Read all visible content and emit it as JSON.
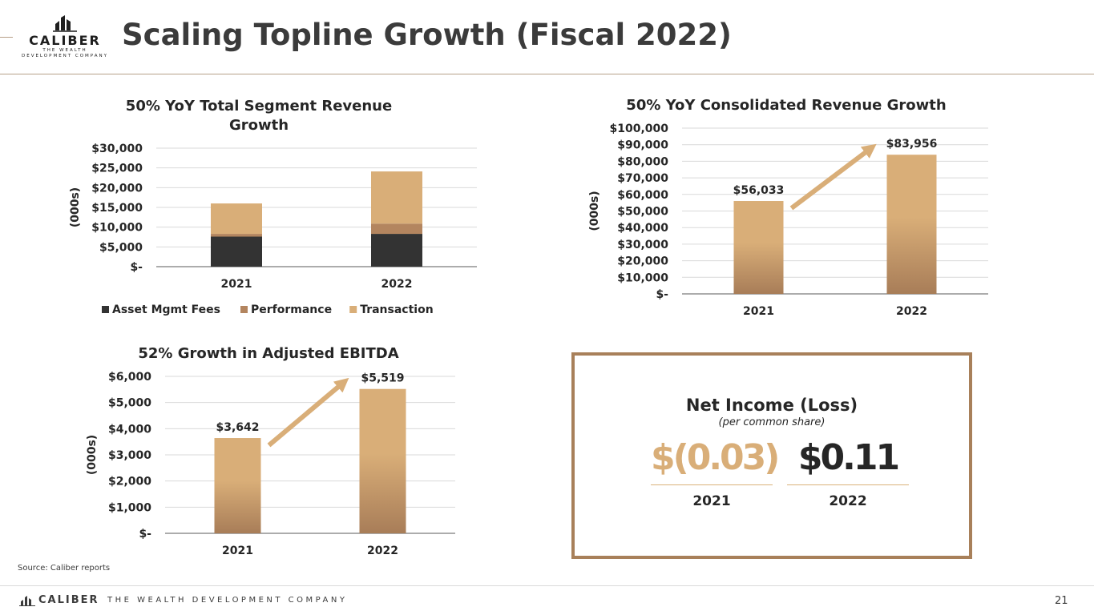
{
  "header": {
    "title": "Scaling Topline Growth (Fiscal 2022)",
    "logo_name": "CALIBER",
    "logo_tagline": "THE WEALTH DEVELOPMENT COMPANY"
  },
  "chart_data": [
    {
      "type": "bar",
      "stacked": true,
      "title": "50% YoY Total Segment Revenue Growth",
      "ylabel": "(000s)",
      "categories": [
        "2021",
        "2022"
      ],
      "series": [
        {
          "name": "Asset Mgmt Fees",
          "values": [
            7600,
            8300
          ],
          "color": "#333333"
        },
        {
          "name": "Performance",
          "values": [
            700,
            2600
          ],
          "color": "#b3855f"
        },
        {
          "name": "Transaction",
          "values": [
            7700,
            13200
          ],
          "color": "#d9ae78"
        }
      ],
      "ylim": [
        0,
        30000
      ],
      "ticks": [
        "$-",
        "$5,000",
        "$10,000",
        "$15,000",
        "$20,000",
        "$25,000",
        "$30,000"
      ],
      "legend": "bottom"
    },
    {
      "type": "bar",
      "title": "50% YoY Consolidated Revenue Growth",
      "ylabel": "(000s)",
      "categories": [
        "2021",
        "2022"
      ],
      "values": [
        56033,
        83956
      ],
      "data_labels": [
        "$56,033",
        "$83,956"
      ],
      "ylim": [
        0,
        100000
      ],
      "ticks": [
        "$-",
        "$10,000",
        "$20,000",
        "$30,000",
        "$40,000",
        "$50,000",
        "$60,000",
        "$70,000",
        "$80,000",
        "$90,000",
        "$100,000"
      ]
    },
    {
      "type": "bar",
      "title": "52% Growth in Adjusted EBITDA",
      "ylabel": "(000s)",
      "categories": [
        "2021",
        "2022"
      ],
      "values": [
        3642,
        5519
      ],
      "data_labels": [
        "$3,642",
        "$5,519"
      ],
      "ylim": [
        0,
        6000
      ],
      "ticks": [
        "$-",
        "$1,000",
        "$2,000",
        "$3,000",
        "$4,000",
        "$5,000",
        "$6,000"
      ]
    }
  ],
  "net_income": {
    "title": "Net Income (Loss)",
    "subtitle": "(per common share)",
    "value_2021": "$(0.03)",
    "value_2022": "$0.11",
    "year_2021": "2021",
    "year_2022": "2022",
    "color_2021": "#d9ae78",
    "color_2022": "#262626"
  },
  "source": "Source: Caliber reports",
  "footer": {
    "name": "CALIBER",
    "tagline": "THE WEALTH DEVELOPMENT COMPANY",
    "page_number": "21"
  },
  "colors": {
    "gold_light": "#d9ae78",
    "gold_dark": "#a87d58",
    "accent_border": "#a8805a"
  }
}
